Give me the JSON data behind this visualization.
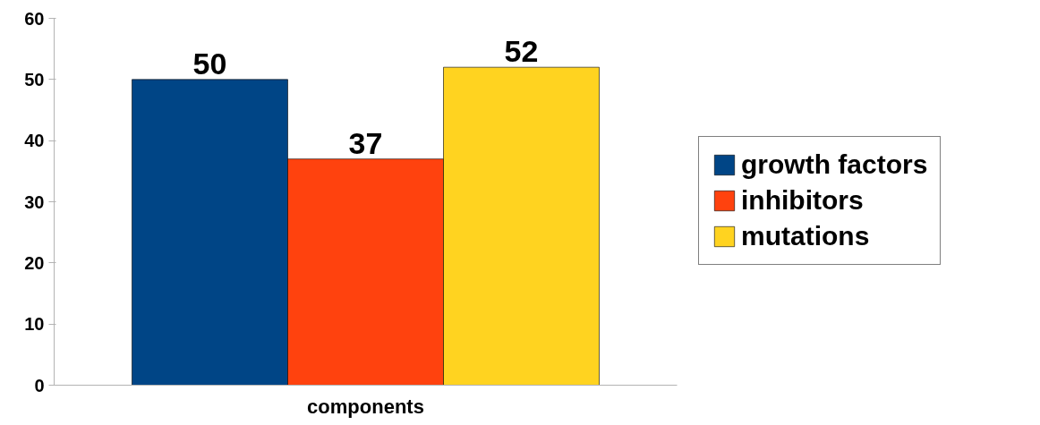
{
  "chart_data": {
    "type": "bar",
    "categories": [
      "components"
    ],
    "series": [
      {
        "name": "growth factors",
        "color": "#004586",
        "values": [
          50
        ]
      },
      {
        "name": "inhibitors",
        "color": "#ff420e",
        "values": [
          37
        ]
      },
      {
        "name": "mutations",
        "color": "#ffd320",
        "values": [
          52
        ]
      }
    ],
    "ylim": [
      0,
      60
    ],
    "yticks": [
      0,
      10,
      20,
      30,
      40,
      50,
      60
    ],
    "grid": false,
    "legend": "right",
    "data_labels": true
  }
}
